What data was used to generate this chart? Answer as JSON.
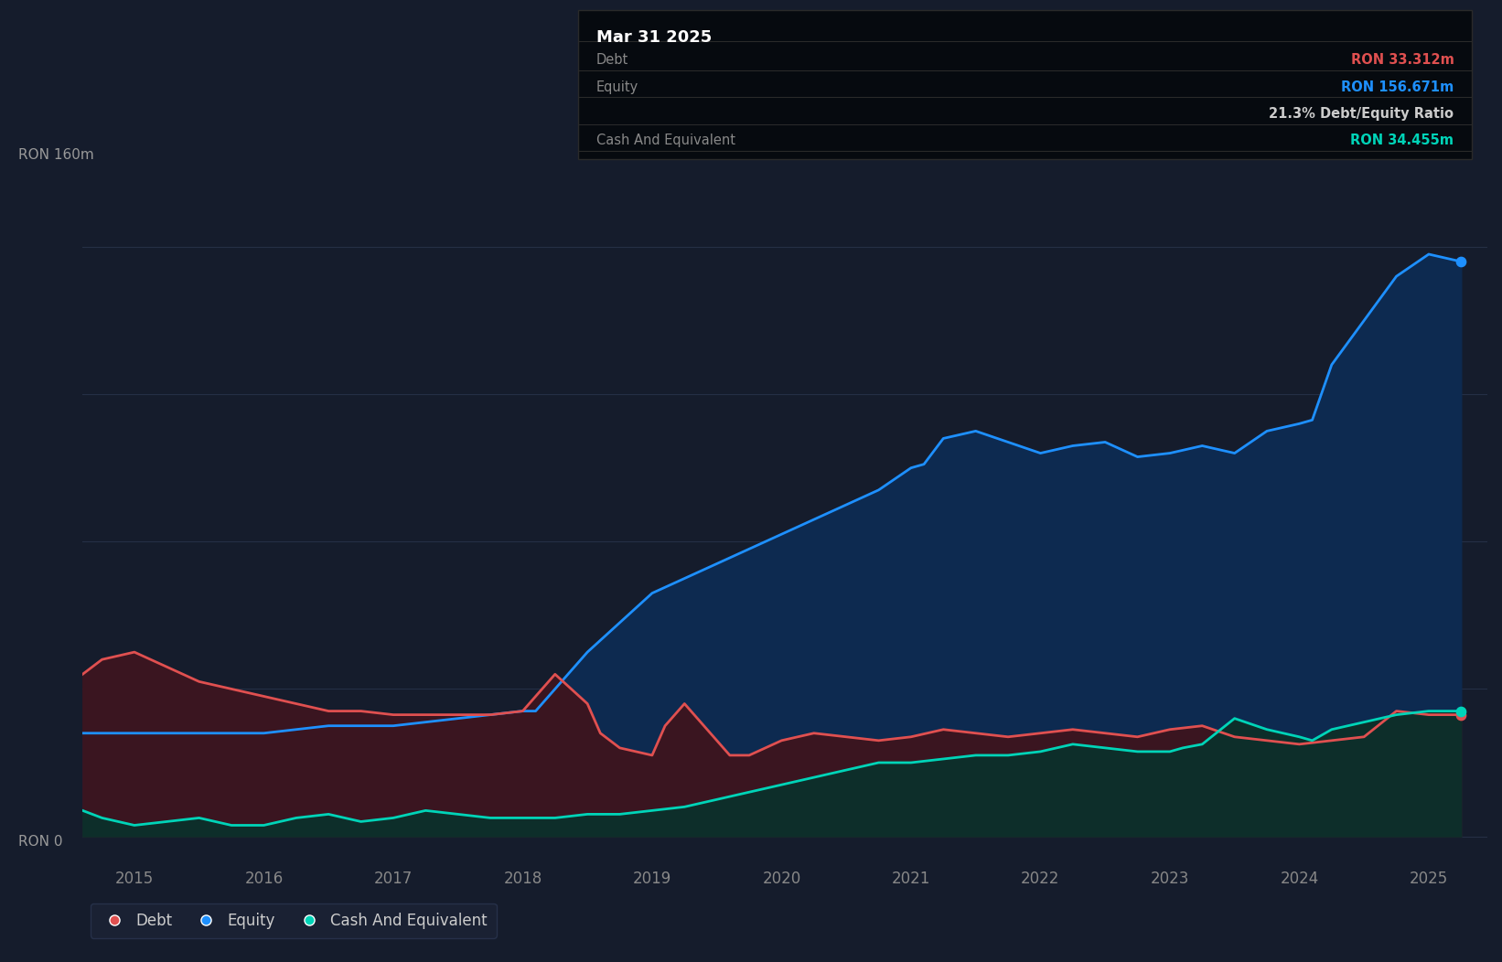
{
  "bg_color": "#151c2c",
  "chart_bg": "#151c2c",
  "grid_color": "#252f45",
  "equity_color": "#1e90ff",
  "debt_color": "#e05050",
  "cash_color": "#00d4b8",
  "equity_fill": "#0d2a50",
  "debt_fill": "#3a1520",
  "cash_fill": "#0d2e2a",
  "xlim_start": 2014.6,
  "xlim_end": 2025.45,
  "ylim_min": -8,
  "ylim_max": 180,
  "xticks": [
    2015,
    2016,
    2017,
    2018,
    2019,
    2020,
    2021,
    2022,
    2023,
    2024,
    2025
  ],
  "ytick_160_label": "RON 160m",
  "ytick_0_label": "RON 0",
  "legend_items": [
    {
      "label": "Debt",
      "color": "#e05050"
    },
    {
      "label": "Equity",
      "color": "#1e90ff"
    },
    {
      "label": "Cash And Equivalent",
      "color": "#00d4b8"
    }
  ],
  "annotation_title": "Mar 31 2025",
  "annotation_rows": [
    {
      "label": "Debt",
      "value": "RON 33.312m",
      "value_color": "#e05050"
    },
    {
      "label": "Equity",
      "value": "RON 156.671m",
      "value_color": "#1e90ff"
    },
    {
      "label": "",
      "value": "21.3% Debt/Equity Ratio",
      "value_color": "#cccccc"
    },
    {
      "label": "Cash And Equivalent",
      "value": "RON 34.455m",
      "value_color": "#00d4b8"
    }
  ],
  "equity_data": {
    "x": [
      2014.6,
      2014.75,
      2015.0,
      2015.25,
      2015.5,
      2015.75,
      2016.0,
      2016.25,
      2016.5,
      2016.75,
      2017.0,
      2017.25,
      2017.5,
      2017.75,
      2018.0,
      2018.1,
      2018.25,
      2018.5,
      2018.75,
      2019.0,
      2019.25,
      2019.5,
      2019.75,
      2020.0,
      2020.25,
      2020.5,
      2020.75,
      2021.0,
      2021.1,
      2021.25,
      2021.5,
      2021.75,
      2022.0,
      2022.25,
      2022.5,
      2022.75,
      2023.0,
      2023.25,
      2023.5,
      2023.75,
      2024.0,
      2024.1,
      2024.25,
      2024.5,
      2024.75,
      2025.0,
      2025.25
    ],
    "y": [
      28,
      28,
      28,
      28,
      28,
      28,
      28,
      29,
      30,
      30,
      30,
      31,
      32,
      33,
      34,
      34,
      40,
      50,
      58,
      66,
      70,
      74,
      78,
      82,
      86,
      90,
      94,
      100,
      101,
      108,
      110,
      107,
      104,
      106,
      107,
      103,
      104,
      106,
      104,
      110,
      112,
      113,
      128,
      140,
      152,
      158,
      156
    ]
  },
  "debt_data": {
    "x": [
      2014.6,
      2014.75,
      2015.0,
      2015.25,
      2015.5,
      2015.75,
      2016.0,
      2016.25,
      2016.5,
      2016.75,
      2017.0,
      2017.25,
      2017.5,
      2017.75,
      2018.0,
      2018.25,
      2018.5,
      2018.6,
      2018.75,
      2019.0,
      2019.1,
      2019.25,
      2019.5,
      2019.6,
      2019.75,
      2020.0,
      2020.25,
      2020.5,
      2020.75,
      2021.0,
      2021.25,
      2021.5,
      2021.75,
      2022.0,
      2022.25,
      2022.5,
      2022.75,
      2023.0,
      2023.25,
      2023.5,
      2023.75,
      2024.0,
      2024.25,
      2024.5,
      2024.75,
      2025.0,
      2025.25
    ],
    "y": [
      44,
      48,
      50,
      46,
      42,
      40,
      38,
      36,
      34,
      34,
      33,
      33,
      33,
      33,
      34,
      44,
      36,
      28,
      24,
      22,
      30,
      36,
      26,
      22,
      22,
      26,
      28,
      27,
      26,
      27,
      29,
      28,
      27,
      28,
      29,
      28,
      27,
      29,
      30,
      27,
      26,
      25,
      26,
      27,
      34,
      33,
      33
    ]
  },
  "cash_data": {
    "x": [
      2014.6,
      2014.75,
      2015.0,
      2015.25,
      2015.5,
      2015.75,
      2016.0,
      2016.25,
      2016.5,
      2016.75,
      2017.0,
      2017.25,
      2017.5,
      2017.75,
      2018.0,
      2018.25,
      2018.5,
      2018.75,
      2019.0,
      2019.25,
      2019.5,
      2019.75,
      2020.0,
      2020.25,
      2020.5,
      2020.75,
      2021.0,
      2021.25,
      2021.5,
      2021.75,
      2022.0,
      2022.25,
      2022.5,
      2022.75,
      2023.0,
      2023.1,
      2023.25,
      2023.5,
      2023.75,
      2024.0,
      2024.1,
      2024.25,
      2024.5,
      2024.75,
      2025.0,
      2025.25
    ],
    "y": [
      7,
      5,
      3,
      4,
      5,
      3,
      3,
      5,
      6,
      4,
      5,
      7,
      6,
      5,
      5,
      5,
      6,
      6,
      7,
      8,
      10,
      12,
      14,
      16,
      18,
      20,
      20,
      21,
      22,
      22,
      23,
      25,
      24,
      23,
      23,
      24,
      25,
      32,
      29,
      27,
      26,
      29,
      31,
      33,
      34,
      34
    ]
  }
}
